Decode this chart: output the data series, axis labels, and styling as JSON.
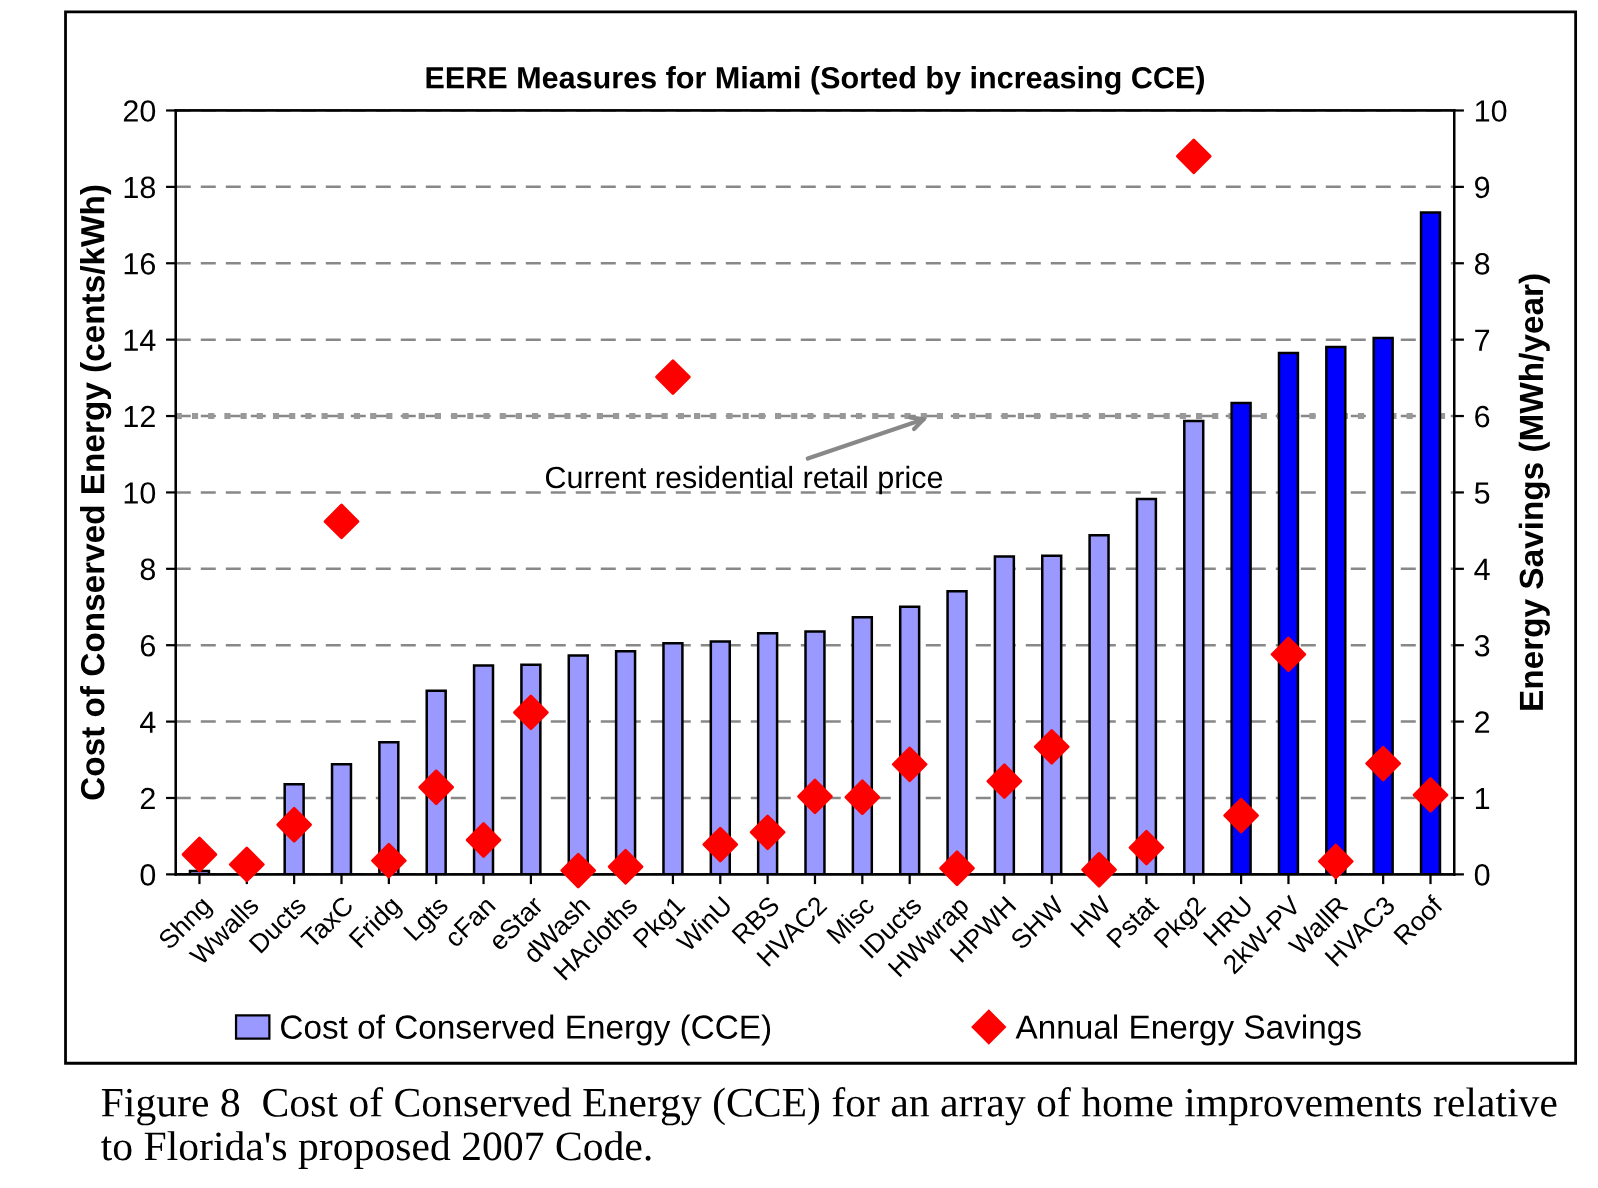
{
  "chart_data": {
    "type": "bar",
    "title": "EERE Measures for Miami (Sorted by increasing CCE)",
    "ylabel": "Cost of Conserved Energy (cents/kWh)",
    "y2label": "Energy Savings (MWh/year)",
    "categories": [
      "Shng",
      "Wwalls",
      "Ducts",
      "TaxC",
      "Fridg",
      "Lgts",
      "cFan",
      "eStar",
      "dWash",
      "HAcloths",
      "Pkg1",
      "WinU",
      "RBS",
      "HVAC2",
      "Misc",
      "IDucts",
      "HWwrap",
      "HPWH",
      "SHW",
      "HW",
      "Pstat",
      "Pkg2",
      "HRU",
      "2kW-PV",
      "WallR",
      "HVAC3",
      "Roof"
    ],
    "series": [
      {
        "name": "Cost of Conserved Energy (CCE)",
        "axis": "y",
        "color": "#9999ff",
        "colors": [
          "#9999ff",
          "#9999ff",
          "#9999ff",
          "#9999ff",
          "#9999ff",
          "#9999ff",
          "#9999ff",
          "#9999ff",
          "#9999ff",
          "#9999ff",
          "#9999ff",
          "#9999ff",
          "#9999ff",
          "#9999ff",
          "#9999ff",
          "#9999ff",
          "#9999ff",
          "#9999ff",
          "#9999ff",
          "#9999ff",
          "#9999ff",
          "#9999ff",
          "#0000ff",
          "#0000ff",
          "#0000ff",
          "#0000ff",
          "#0000ff"
        ],
        "values": [
          0.09,
          null,
          2.36,
          2.88,
          3.46,
          4.81,
          5.47,
          5.49,
          5.73,
          5.84,
          6.05,
          6.1,
          6.31,
          6.36,
          6.73,
          7.01,
          7.41,
          8.32,
          8.34,
          8.88,
          9.83,
          11.87,
          12.34,
          13.65,
          13.81,
          14.04,
          17.33
        ]
      },
      {
        "name": "Annual Energy Savings",
        "type": "scatter",
        "axis": "y2",
        "color": "#ff0000",
        "marker": "diamond",
        "values": [
          0.26,
          0.13,
          0.65,
          4.62,
          0.18,
          1.14,
          0.45,
          2.12,
          0.05,
          0.1,
          6.51,
          0.39,
          0.55,
          1.02,
          1.01,
          1.44,
          0.08,
          1.22,
          1.67,
          0.06,
          0.35,
          9.4,
          0.77,
          2.88,
          0.17,
          1.45,
          1.04
        ]
      }
    ],
    "ylim": [
      0,
      20
    ],
    "yticks": [
      0,
      2,
      4,
      6,
      8,
      10,
      12,
      14,
      16,
      18,
      20
    ],
    "y2lim": [
      0,
      10
    ],
    "y2ticks": [
      0,
      1,
      2,
      3,
      4,
      5,
      6,
      7,
      8,
      9,
      10
    ],
    "ref_lines": [
      {
        "axis": "y",
        "value": 12,
        "label": "Current residential retail price",
        "color": "#999999",
        "line_style": "dotted"
      }
    ],
    "annotations": [
      "Figure 8  Cost of Conserved Energy (CCE) for an array of home improvements relative to Florida's proposed 2007 Code."
    ],
    "grid": "y",
    "legend": "bottom"
  }
}
